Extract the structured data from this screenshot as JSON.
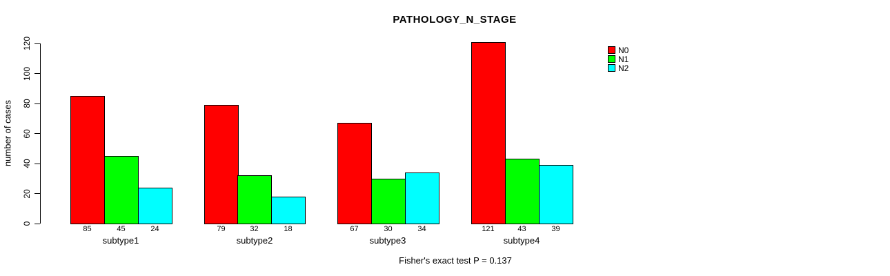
{
  "title": "PATHOLOGY_N_STAGE",
  "footer": "Fisher's exact test P = 0.137",
  "chart_data": {
    "type": "bar",
    "title": "PATHOLOGY_N_STAGE",
    "xlabel": "",
    "ylabel": "number of cases",
    "ylim": [
      0,
      120
    ],
    "yticks": [
      0,
      20,
      40,
      60,
      80,
      100,
      120
    ],
    "grid": false,
    "legend_position": "top-right",
    "bar_value_labels": true,
    "categories": [
      "subtype1",
      "subtype2",
      "subtype3",
      "subtype4"
    ],
    "series": [
      {
        "name": "N0",
        "color": "#ff0000",
        "values": [
          85,
          79,
          67,
          121
        ]
      },
      {
        "name": "N1",
        "color": "#00ff00",
        "values": [
          45,
          32,
          30,
          43
        ]
      },
      {
        "name": "N2",
        "color": "#00ffff",
        "values": [
          24,
          18,
          34,
          39
        ]
      }
    ],
    "annotations": [
      "Fisher's exact test P = 0.137"
    ]
  }
}
